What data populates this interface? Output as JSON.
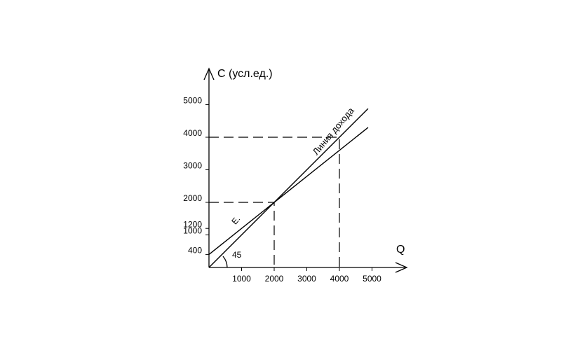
{
  "chart_data": {
    "type": "line",
    "y_label": "C (усл.ед.)",
    "x_label": "Q",
    "x": [
      0,
      4880
    ],
    "series": [
      {
        "name": "Линия дохода",
        "color": "#000000",
        "values": [
          0,
          4880
        ]
      },
      {
        "name": "E.",
        "color": "#000000",
        "values": [
          400,
          4300
        ]
      }
    ],
    "guides": [
      {
        "x": 2000,
        "y": 2000
      },
      {
        "x": 4000,
        "y": 4000
      }
    ],
    "annotation": "45",
    "xlim": [
      0,
      6000
    ],
    "ylim": [
      0,
      6000
    ],
    "xticks": [
      1000,
      2000,
      3000,
      4000,
      5000
    ],
    "yticks": [
      400,
      1000,
      1200,
      2000,
      3000,
      4000,
      5000
    ]
  }
}
